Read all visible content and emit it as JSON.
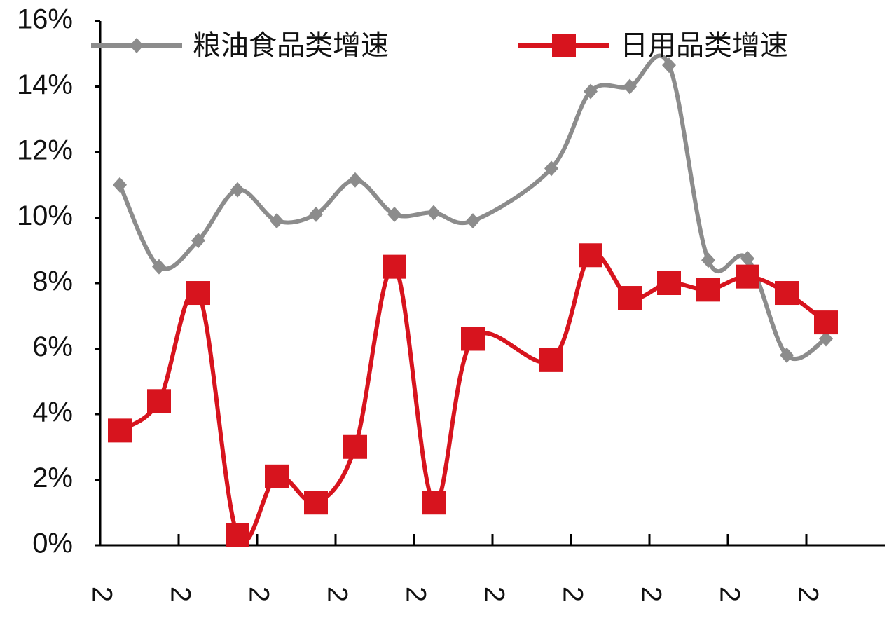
{
  "chart_data": {
    "type": "line",
    "x": [
      0,
      1,
      2,
      3,
      4,
      5,
      6,
      7,
      8,
      9,
      11,
      12,
      13,
      14,
      15,
      16,
      17,
      18,
      19
    ],
    "series": [
      {
        "name": "粮油食品类增速",
        "color": "#8c8c8c",
        "marker": "diamond",
        "values": [
          11.0,
          8.5,
          9.3,
          10.85,
          9.9,
          10.1,
          11.15,
          10.1,
          10.15,
          9.9,
          11.5,
          13.85,
          14.0,
          14.65,
          8.7,
          8.75,
          5.8,
          6.3,
          null
        ]
      },
      {
        "name": "日用品类增速",
        "color": "#d7141e",
        "marker": "square",
        "values": [
          3.5,
          4.4,
          7.7,
          0.3,
          2.1,
          1.3,
          3.0,
          8.5,
          1.3,
          6.3,
          5.65,
          8.85,
          7.55,
          8.0,
          7.8,
          8.2,
          7.7,
          6.8,
          null
        ]
      }
    ],
    "xlim": [
      -0.5,
      19.5
    ],
    "xticks": [
      {
        "value": -0.5,
        "label": "2"
      },
      {
        "value": 1.5,
        "label": "2"
      },
      {
        "value": 3.5,
        "label": "2"
      },
      {
        "value": 5.5,
        "label": "2"
      },
      {
        "value": 7.5,
        "label": "2"
      },
      {
        "value": 9.5,
        "label": "2"
      },
      {
        "value": 11.5,
        "label": "2"
      },
      {
        "value": 13.5,
        "label": "2"
      },
      {
        "value": 15.5,
        "label": "2"
      },
      {
        "value": 17.5,
        "label": "2"
      }
    ],
    "ylim": [
      0,
      16
    ],
    "yticks": [
      {
        "value": 0,
        "label": "0%"
      },
      {
        "value": 2,
        "label": "2%"
      },
      {
        "value": 4,
        "label": "4%"
      },
      {
        "value": 6,
        "label": "6%"
      },
      {
        "value": 8,
        "label": "8%"
      },
      {
        "value": 10,
        "label": "10%"
      },
      {
        "value": 12,
        "label": "12%"
      },
      {
        "value": 14,
        "label": "14%"
      },
      {
        "value": 16,
        "label": "16%"
      }
    ],
    "grid": false,
    "legend": "top"
  }
}
